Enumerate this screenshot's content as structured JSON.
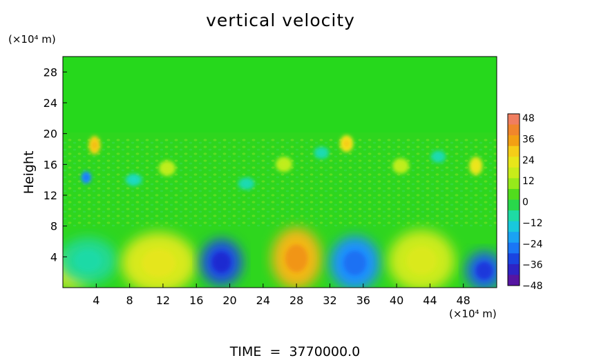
{
  "chart_data": {
    "type": "heatmap",
    "title": "vertical velocity",
    "xlabel": "",
    "ylabel": "Height",
    "x_unit": "(×10⁴ m)",
    "y_unit": "(×10⁴ m)",
    "footer": "TIME  =  3770000.0",
    "xlim": [
      0,
      52
    ],
    "ylim": [
      0,
      30
    ],
    "x_ticks": [
      "4",
      "8",
      "12",
      "16",
      "20",
      "24",
      "28",
      "32",
      "36",
      "40",
      "44",
      "48"
    ],
    "y_ticks": [
      "4",
      "8",
      "12",
      "16",
      "20",
      "24",
      "28"
    ],
    "x_tick_values": [
      4,
      8,
      12,
      16,
      20,
      24,
      28,
      32,
      36,
      40,
      44,
      48
    ],
    "y_tick_values": [
      4,
      8,
      12,
      16,
      20,
      24,
      28
    ],
    "colorbar": {
      "labels": [
        "48",
        "36",
        "24",
        "12",
        "0",
        "−12",
        "−24",
        "−36",
        "−48"
      ],
      "min": -48,
      "max": 48
    },
    "features": [
      {
        "x": 1.0,
        "y": 2.0,
        "value": 20,
        "rx": 2.2,
        "ry": 2.2
      },
      {
        "x": 3.0,
        "y": 3.5,
        "value": -8,
        "rx": 3.5,
        "ry": 3.0
      },
      {
        "x": 11.5,
        "y": 3.2,
        "value": 18,
        "rx": 4.5,
        "ry": 4.0
      },
      {
        "x": 19.0,
        "y": 3.3,
        "value": -32,
        "rx": 2.5,
        "ry": 3.0
      },
      {
        "x": 28.0,
        "y": 3.8,
        "value": 30,
        "rx": 3.0,
        "ry": 4.0
      },
      {
        "x": 35.0,
        "y": 3.2,
        "value": -24,
        "rx": 3.0,
        "ry": 3.5
      },
      {
        "x": 43.0,
        "y": 3.5,
        "value": 16,
        "rx": 4.0,
        "ry": 4.0
      },
      {
        "x": 50.5,
        "y": 2.2,
        "value": -30,
        "rx": 2.2,
        "ry": 2.5
      },
      {
        "x": 3.8,
        "y": 18.5,
        "value": 26,
        "rx": 0.7,
        "ry": 1.2
      },
      {
        "x": 2.8,
        "y": 14.3,
        "value": -24,
        "rx": 0.6,
        "ry": 0.8
      },
      {
        "x": 34.0,
        "y": 18.7,
        "value": 24,
        "rx": 0.8,
        "ry": 1.1
      },
      {
        "x": 49.5,
        "y": 15.8,
        "value": 20,
        "rx": 0.8,
        "ry": 1.2
      },
      {
        "x": 12.5,
        "y": 15.5,
        "value": 12,
        "rx": 1.0,
        "ry": 1.0
      },
      {
        "x": 26.5,
        "y": 16.0,
        "value": 12,
        "rx": 1.0,
        "ry": 1.0
      },
      {
        "x": 40.5,
        "y": 15.8,
        "value": 12,
        "rx": 1.0,
        "ry": 1.0
      },
      {
        "x": 8.5,
        "y": 14.0,
        "value": -10,
        "rx": 1.0,
        "ry": 0.8
      },
      {
        "x": 22.0,
        "y": 13.5,
        "value": -9,
        "rx": 1.0,
        "ry": 0.8
      },
      {
        "x": 31.0,
        "y": 17.5,
        "value": -9,
        "rx": 0.9,
        "ry": 0.8
      },
      {
        "x": 45.0,
        "y": 17.0,
        "value": -9,
        "rx": 0.9,
        "ry": 0.8
      }
    ]
  }
}
